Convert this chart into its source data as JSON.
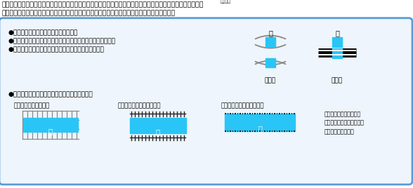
{
  "top_text1": "ちなみに、川のまわりには、「土（の）がけ」・「土堤（堤防）」・「擁壁（護岸）」などが多く見られます。",
  "top_text1_ruby": "ようへき",
  "top_text2": "これらは、川の両側を高くしたりすることで、洪水を防いだりするために建設されたものです。",
  "bullet1": "●高いところから低いところへ流れる。",
  "bullet2": "●下流に行くほど（低いところに行くほど）、幅は広くなる。",
  "bullet3": "●途中に「橋」を表す地図記号が見られる場合が多い。",
  "bullet4": "●次のような地形図記号が見られることも多い。",
  "label_douro": "道路橋",
  "label_tetsudo": "鉄道橋",
  "label_ganke": "〈〈　土のがけ　〉〉",
  "label_dotei": "〈〈　土堤（堤防）　〉〉",
  "label_yoheki": "〈〈　擁壁（護岸）　〉〉",
  "note_yoheki": "擁壁は河川の両側をコン\nクリートで固めたりして強\n化した堤防の一種。",
  "kanji_kawa": "川",
  "cyan_color": "#29C5F6",
  "gray_color": "#888888",
  "dark_color": "#222222",
  "box_border": "#5B9BD5",
  "box_bg": "#EEF5FC",
  "bg_white": "#FFFFFF",
  "rail_dark": "#111111",
  "rail_light": "#CCCCCC"
}
